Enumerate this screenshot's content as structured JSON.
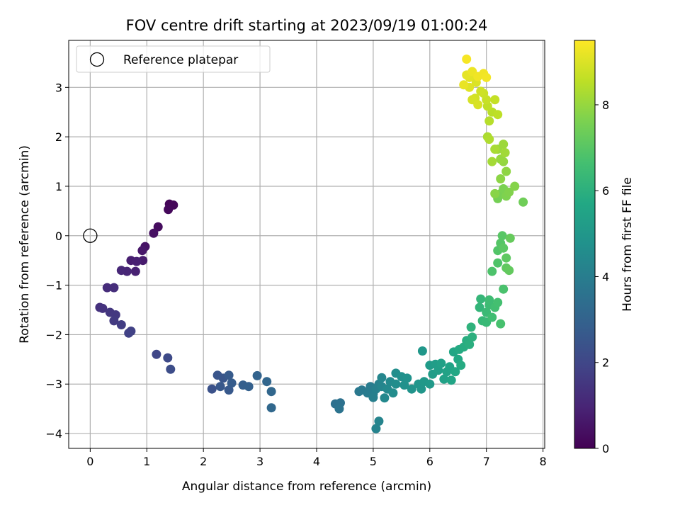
{
  "chart_data": {
    "type": "scatter",
    "title": "FOV centre drift starting at 2023/09/19 01:00:24",
    "xlabel": "Angular distance from reference (arcmin)",
    "ylabel": "Rotation from reference (arcmin)",
    "xlim": [
      -0.38,
      8.03
    ],
    "ylim": [
      -4.3,
      3.95
    ],
    "x_ticks": [
      0,
      1,
      2,
      3,
      4,
      5,
      6,
      7,
      8
    ],
    "y_ticks": [
      -4,
      -3,
      -2,
      -1,
      0,
      1,
      2,
      3
    ],
    "grid": true,
    "legend": {
      "position": "upper-left",
      "entries": [
        {
          "label": "Reference platepar",
          "marker": "hollow-circle",
          "color": "#000000"
        }
      ]
    },
    "reference_point": {
      "x": 0,
      "y": 0
    },
    "colorbar": {
      "label": "Hours from first FF file",
      "colormap": "viridis",
      "range": [
        0,
        9.5
      ],
      "ticks": [
        0,
        2,
        4,
        6,
        8
      ]
    },
    "series": [
      {
        "points": [
          {
            "x": 1.4,
            "y": 0.64,
            "t": 0.1
          },
          {
            "x": 1.47,
            "y": 0.62,
            "t": 0.15
          },
          {
            "x": 1.38,
            "y": 0.53,
            "t": 0.2
          },
          {
            "x": 1.2,
            "y": 0.18,
            "t": 0.3
          },
          {
            "x": 1.12,
            "y": 0.05,
            "t": 0.4
          },
          {
            "x": 0.97,
            "y": -0.22,
            "t": 0.5
          },
          {
            "x": 0.92,
            "y": -0.3,
            "t": 0.6
          },
          {
            "x": 0.93,
            "y": -0.5,
            "t": 0.7
          },
          {
            "x": 0.72,
            "y": -0.5,
            "t": 0.8
          },
          {
            "x": 0.82,
            "y": -0.52,
            "t": 0.85
          },
          {
            "x": 0.8,
            "y": -0.72,
            "t": 0.9
          },
          {
            "x": 0.65,
            "y": -0.72,
            "t": 1.0
          },
          {
            "x": 0.55,
            "y": -0.7,
            "t": 1.05
          },
          {
            "x": 0.3,
            "y": -1.05,
            "t": 1.2
          },
          {
            "x": 0.42,
            "y": -1.05,
            "t": 1.25
          },
          {
            "x": 0.17,
            "y": -1.45,
            "t": 1.35
          },
          {
            "x": 0.22,
            "y": -1.47,
            "t": 1.4
          },
          {
            "x": 0.35,
            "y": -1.55,
            "t": 1.5
          },
          {
            "x": 0.45,
            "y": -1.6,
            "t": 1.55
          },
          {
            "x": 0.42,
            "y": -1.72,
            "t": 1.6
          },
          {
            "x": 0.55,
            "y": -1.8,
            "t": 1.7
          },
          {
            "x": 0.72,
            "y": -1.93,
            "t": 1.8
          },
          {
            "x": 0.68,
            "y": -1.97,
            "t": 1.85
          },
          {
            "x": 1.17,
            "y": -2.4,
            "t": 2.0
          },
          {
            "x": 1.37,
            "y": -2.47,
            "t": 2.1
          },
          {
            "x": 1.42,
            "y": -2.7,
            "t": 2.2
          },
          {
            "x": 2.15,
            "y": -3.1,
            "t": 2.4
          },
          {
            "x": 2.25,
            "y": -2.82,
            "t": 2.5
          },
          {
            "x": 2.35,
            "y": -2.88,
            "t": 2.55
          },
          {
            "x": 2.3,
            "y": -3.05,
            "t": 2.6
          },
          {
            "x": 2.45,
            "y": -3.12,
            "t": 2.65
          },
          {
            "x": 2.45,
            "y": -2.82,
            "t": 2.7
          },
          {
            "x": 2.5,
            "y": -2.98,
            "t": 2.75
          },
          {
            "x": 2.7,
            "y": -3.02,
            "t": 2.85
          },
          {
            "x": 2.8,
            "y": -3.05,
            "t": 2.9
          },
          {
            "x": 2.95,
            "y": -2.83,
            "t": 3.0
          },
          {
            "x": 3.12,
            "y": -2.95,
            "t": 3.1
          },
          {
            "x": 3.2,
            "y": -3.15,
            "t": 3.15
          },
          {
            "x": 3.2,
            "y": -3.48,
            "t": 3.2
          },
          {
            "x": 4.33,
            "y": -3.4,
            "t": 3.5
          },
          {
            "x": 4.42,
            "y": -3.38,
            "t": 3.55
          },
          {
            "x": 4.4,
            "y": -3.5,
            "t": 3.6
          },
          {
            "x": 4.75,
            "y": -3.15,
            "t": 3.8
          },
          {
            "x": 4.8,
            "y": -3.12,
            "t": 3.85
          },
          {
            "x": 4.9,
            "y": -3.18,
            "t": 3.9
          },
          {
            "x": 4.95,
            "y": -3.05,
            "t": 3.95
          },
          {
            "x": 5.0,
            "y": -3.2,
            "t": 4.0
          },
          {
            "x": 5.0,
            "y": -3.27,
            "t": 4.05
          },
          {
            "x": 5.05,
            "y": -3.1,
            "t": 4.1
          },
          {
            "x": 5.1,
            "y": -3.0,
            "t": 4.15
          },
          {
            "x": 5.05,
            "y": -3.9,
            "t": 4.2
          },
          {
            "x": 5.1,
            "y": -3.75,
            "t": 4.25
          },
          {
            "x": 5.15,
            "y": -3.05,
            "t": 4.3
          },
          {
            "x": 5.15,
            "y": -2.87,
            "t": 4.35
          },
          {
            "x": 5.2,
            "y": -3.28,
            "t": 4.4
          },
          {
            "x": 5.25,
            "y": -3.1,
            "t": 4.45
          },
          {
            "x": 5.3,
            "y": -2.95,
            "t": 4.5
          },
          {
            "x": 5.35,
            "y": -3.18,
            "t": 4.55
          },
          {
            "x": 5.4,
            "y": -3.0,
            "t": 4.6
          },
          {
            "x": 5.4,
            "y": -2.78,
            "t": 4.65
          },
          {
            "x": 5.5,
            "y": -2.85,
            "t": 4.7
          },
          {
            "x": 5.55,
            "y": -3.02,
            "t": 4.75
          },
          {
            "x": 5.6,
            "y": -2.88,
            "t": 4.8
          },
          {
            "x": 5.68,
            "y": -3.1,
            "t": 4.85
          },
          {
            "x": 5.8,
            "y": -3.0,
            "t": 4.9
          },
          {
            "x": 5.85,
            "y": -3.1,
            "t": 4.95
          },
          {
            "x": 5.87,
            "y": -2.33,
            "t": 5.0
          },
          {
            "x": 5.9,
            "y": -2.95,
            "t": 5.05
          },
          {
            "x": 6.0,
            "y": -3.0,
            "t": 5.1
          },
          {
            "x": 6.0,
            "y": -2.62,
            "t": 5.15
          },
          {
            "x": 6.05,
            "y": -2.8,
            "t": 5.2
          },
          {
            "x": 6.1,
            "y": -2.6,
            "t": 5.25
          },
          {
            "x": 6.15,
            "y": -2.72,
            "t": 5.3
          },
          {
            "x": 6.2,
            "y": -2.58,
            "t": 5.35
          },
          {
            "x": 6.25,
            "y": -2.9,
            "t": 5.4
          },
          {
            "x": 6.3,
            "y": -2.75,
            "t": 5.45
          },
          {
            "x": 6.35,
            "y": -2.65,
            "t": 5.5
          },
          {
            "x": 6.38,
            "y": -2.92,
            "t": 5.55
          },
          {
            "x": 6.42,
            "y": -2.35,
            "t": 5.6
          },
          {
            "x": 6.45,
            "y": -2.75,
            "t": 5.65
          },
          {
            "x": 6.5,
            "y": -2.5,
            "t": 5.7
          },
          {
            "x": 6.52,
            "y": -2.3,
            "t": 5.75
          },
          {
            "x": 6.55,
            "y": -2.62,
            "t": 5.8
          },
          {
            "x": 6.6,
            "y": -2.25,
            "t": 5.85
          },
          {
            "x": 6.65,
            "y": -2.12,
            "t": 5.9
          },
          {
            "x": 6.7,
            "y": -2.2,
            "t": 5.95
          },
          {
            "x": 6.75,
            "y": -2.05,
            "t": 6.0
          },
          {
            "x": 6.73,
            "y": -1.85,
            "t": 6.1
          },
          {
            "x": 6.88,
            "y": -1.45,
            "t": 6.2
          },
          {
            "x": 6.9,
            "y": -1.28,
            "t": 6.25
          },
          {
            "x": 6.93,
            "y": -1.72,
            "t": 6.3
          },
          {
            "x": 7.0,
            "y": -1.75,
            "t": 6.35
          },
          {
            "x": 7.0,
            "y": -1.55,
            "t": 6.4
          },
          {
            "x": 7.05,
            "y": -1.4,
            "t": 6.45
          },
          {
            "x": 7.05,
            "y": -1.3,
            "t": 6.5
          },
          {
            "x": 7.1,
            "y": -1.65,
            "t": 6.55
          },
          {
            "x": 7.15,
            "y": -1.45,
            "t": 6.6
          },
          {
            "x": 7.2,
            "y": -1.35,
            "t": 6.65
          },
          {
            "x": 7.25,
            "y": -1.78,
            "t": 6.7
          },
          {
            "x": 7.3,
            "y": -1.08,
            "t": 6.75
          },
          {
            "x": 7.1,
            "y": -0.72,
            "t": 6.8
          },
          {
            "x": 7.2,
            "y": -0.55,
            "t": 6.85
          },
          {
            "x": 7.2,
            "y": -0.3,
            "t": 6.9
          },
          {
            "x": 7.25,
            "y": -0.15,
            "t": 6.95
          },
          {
            "x": 7.28,
            "y": 0.0,
            "t": 7.0
          },
          {
            "x": 7.3,
            "y": -0.25,
            "t": 7.05
          },
          {
            "x": 7.35,
            "y": -0.45,
            "t": 7.1
          },
          {
            "x": 7.35,
            "y": -0.65,
            "t": 7.15
          },
          {
            "x": 7.4,
            "y": -0.7,
            "t": 7.2
          },
          {
            "x": 7.42,
            "y": -0.05,
            "t": 7.25
          },
          {
            "x": 7.65,
            "y": 0.68,
            "t": 7.4
          },
          {
            "x": 7.2,
            "y": 0.75,
            "t": 7.5
          },
          {
            "x": 7.25,
            "y": 0.85,
            "t": 7.55
          },
          {
            "x": 7.3,
            "y": 0.95,
            "t": 7.6
          },
          {
            "x": 7.35,
            "y": 0.8,
            "t": 7.65
          },
          {
            "x": 7.4,
            "y": 0.88,
            "t": 7.7
          },
          {
            "x": 7.5,
            "y": 1.0,
            "t": 7.75
          },
          {
            "x": 7.15,
            "y": 0.85,
            "t": 7.8
          },
          {
            "x": 7.25,
            "y": 1.15,
            "t": 7.85
          },
          {
            "x": 7.35,
            "y": 1.3,
            "t": 7.9
          },
          {
            "x": 7.3,
            "y": 1.5,
            "t": 7.95
          },
          {
            "x": 7.25,
            "y": 1.55,
            "t": 8.0
          },
          {
            "x": 7.2,
            "y": 1.75,
            "t": 8.05
          },
          {
            "x": 7.3,
            "y": 1.85,
            "t": 8.1
          },
          {
            "x": 7.33,
            "y": 1.68,
            "t": 8.15
          },
          {
            "x": 7.1,
            "y": 1.5,
            "t": 8.2
          },
          {
            "x": 7.15,
            "y": 1.75,
            "t": 8.25
          },
          {
            "x": 7.02,
            "y": 2.0,
            "t": 8.3
          },
          {
            "x": 7.05,
            "y": 1.95,
            "t": 8.35
          },
          {
            "x": 7.05,
            "y": 2.32,
            "t": 8.45
          },
          {
            "x": 7.1,
            "y": 2.5,
            "t": 8.5
          },
          {
            "x": 7.2,
            "y": 2.45,
            "t": 8.55
          },
          {
            "x": 7.02,
            "y": 2.62,
            "t": 8.6
          },
          {
            "x": 7.15,
            "y": 2.75,
            "t": 8.65
          },
          {
            "x": 7.0,
            "y": 2.75,
            "t": 8.7
          },
          {
            "x": 6.95,
            "y": 2.88,
            "t": 8.75
          },
          {
            "x": 6.9,
            "y": 2.92,
            "t": 8.8
          },
          {
            "x": 6.8,
            "y": 2.78,
            "t": 8.85
          },
          {
            "x": 6.75,
            "y": 2.75,
            "t": 8.9
          },
          {
            "x": 6.85,
            "y": 2.65,
            "t": 8.95
          },
          {
            "x": 6.82,
            "y": 3.1,
            "t": 9.0
          },
          {
            "x": 6.7,
            "y": 3.0,
            "t": 9.05
          },
          {
            "x": 6.7,
            "y": 3.2,
            "t": 9.1
          },
          {
            "x": 6.65,
            "y": 3.25,
            "t": 9.15
          },
          {
            "x": 6.6,
            "y": 3.05,
            "t": 9.2
          },
          {
            "x": 6.75,
            "y": 3.32,
            "t": 9.25
          },
          {
            "x": 6.85,
            "y": 3.22,
            "t": 9.3
          },
          {
            "x": 6.95,
            "y": 3.28,
            "t": 9.32
          },
          {
            "x": 7.0,
            "y": 3.2,
            "t": 9.35
          },
          {
            "x": 6.65,
            "y": 3.57,
            "t": 9.4
          }
        ]
      }
    ]
  }
}
